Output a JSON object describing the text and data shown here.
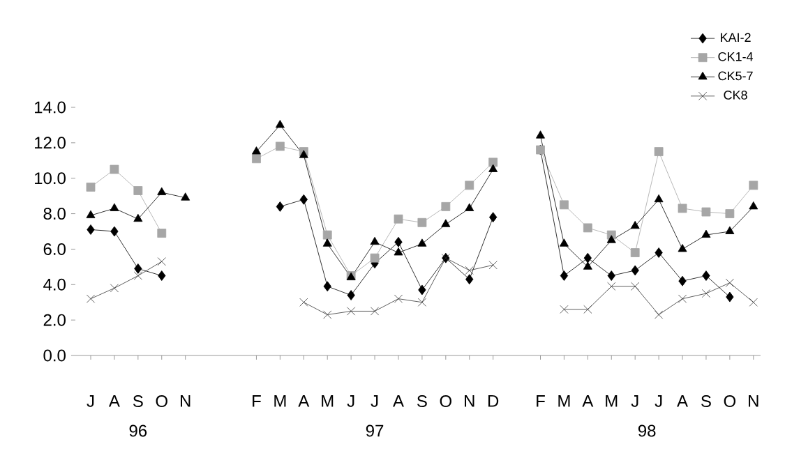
{
  "chart_data": {
    "type": "line",
    "categories": [
      "J",
      "A",
      "S",
      "O",
      "N",
      null,
      null,
      "F",
      "M",
      "A",
      "M",
      "J",
      "J",
      "A",
      "S",
      "O",
      "N",
      "D",
      null,
      "F",
      "M",
      "A",
      "M",
      "J",
      "J",
      "A",
      "S",
      "O",
      "N"
    ],
    "series": [
      {
        "name": "KAI-2",
        "color": "#000000",
        "marker": "diamond",
        "values": [
          7.1,
          7.0,
          4.9,
          4.5,
          null,
          null,
          null,
          null,
          8.4,
          8.8,
          3.9,
          3.4,
          5.2,
          6.4,
          3.7,
          5.5,
          4.3,
          7.8,
          null,
          11.6,
          4.5,
          5.5,
          4.5,
          4.8,
          5.8,
          4.2,
          4.5,
          3.3,
          null
        ]
      },
      {
        "name": "CK1-4",
        "color": "#a6a6a6",
        "marker": "square",
        "values": [
          9.5,
          10.5,
          9.3,
          6.9,
          null,
          null,
          null,
          11.1,
          11.8,
          11.5,
          6.8,
          4.5,
          5.5,
          7.7,
          7.5,
          8.4,
          9.6,
          10.9,
          null,
          11.6,
          8.5,
          7.2,
          6.8,
          5.8,
          11.5,
          8.3,
          8.1,
          8.0,
          9.6
        ]
      },
      {
        "name": "CK5-7",
        "color": "#000000",
        "marker": "triangle",
        "values": [
          7.9,
          8.3,
          7.7,
          9.2,
          8.9,
          null,
          null,
          11.5,
          13.0,
          11.3,
          6.3,
          4.4,
          6.4,
          5.8,
          6.3,
          7.4,
          8.3,
          10.5,
          null,
          12.4,
          6.3,
          5.0,
          6.5,
          7.3,
          8.8,
          6.0,
          6.8,
          7.0,
          8.4
        ]
      },
      {
        "name": "CK8",
        "color": "#333333",
        "marker": "cross",
        "values": [
          3.2,
          3.8,
          4.5,
          5.3,
          null,
          null,
          null,
          null,
          null,
          3.0,
          2.3,
          2.5,
          2.5,
          3.2,
          3.0,
          5.5,
          4.8,
          5.1,
          null,
          null,
          2.6,
          2.6,
          3.9,
          3.9,
          2.3,
          3.2,
          3.5,
          4.1,
          3.0
        ]
      }
    ],
    "ylim": [
      0,
      14
    ],
    "yticks": [
      {
        "value": 0,
        "label": "0.0"
      },
      {
        "value": 2,
        "label": "2.0"
      },
      {
        "value": 4,
        "label": "4.0"
      },
      {
        "value": 6,
        "label": "6.0"
      },
      {
        "value": 8,
        "label": "8.0"
      },
      {
        "value": 10,
        "label": "10.0"
      },
      {
        "value": 12,
        "label": "12.0"
      },
      {
        "value": 14,
        "label": "14.0"
      }
    ],
    "legend": "top right",
    "annotations": [
      "96",
      "97",
      "98"
    ]
  }
}
